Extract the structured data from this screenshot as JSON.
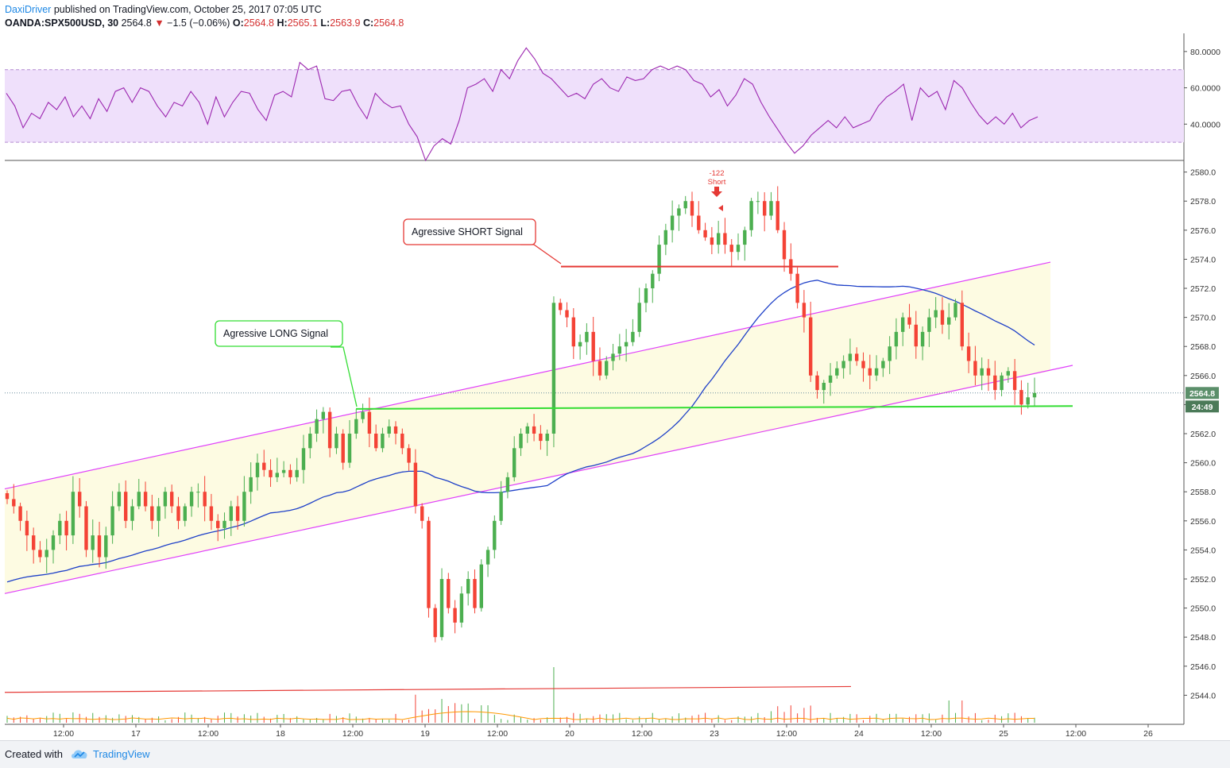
{
  "header": {
    "author": "DaxiDriver",
    "published_text": "published on TradingView.com, October 25, 2017 07:05 UTC",
    "symbol": "OANDA:SPX500USD, 30",
    "last": "2564.8",
    "change": "−1.5 (−0.06%)",
    "o_label": "O:",
    "o_value": "2564.8",
    "h_label": "H:",
    "h_value": "2565.1",
    "l_label": "L:",
    "l_value": "2563.9",
    "c_label": "C:",
    "c_value": "2564.8"
  },
  "footer": {
    "created_with": "Created with",
    "brand": "TradingView"
  },
  "colors": {
    "up": "#4caf50",
    "down": "#f44336",
    "rsi": "#9c27b0",
    "rsi_band": "#efe0fb",
    "channel_line": "#e040fb",
    "channel_fill": "#fdfbe2",
    "ma": "#1e40c8",
    "long_line": "#33dd33",
    "short_line": "#e53935",
    "volume_ma": "#ff9800"
  },
  "chart_data": [
    {
      "type": "line",
      "panel": "rsi",
      "ylim": [
        20,
        90
      ],
      "yticks": [
        "80.0000",
        "60.0000",
        "40.0000"
      ],
      "ytick_values": [
        80,
        60,
        40
      ],
      "band": [
        30,
        70
      ],
      "series": [
        {
          "values": [
            57,
            50,
            38,
            46,
            43,
            52,
            48,
            55,
            44,
            50,
            43,
            54,
            47,
            58,
            60,
            52,
            60,
            58,
            50,
            44,
            52,
            50,
            58,
            52,
            40,
            55,
            44,
            52,
            58,
            57,
            48,
            42,
            56,
            58,
            55,
            74,
            70,
            72,
            54,
            53,
            58,
            59,
            50,
            43,
            57,
            52,
            49,
            50,
            40,
            33,
            20,
            28,
            32,
            29,
            42,
            60,
            62,
            65,
            58,
            70,
            65,
            75,
            82,
            76,
            68,
            65,
            60,
            55,
            57,
            54,
            62,
            65,
            60,
            58,
            66,
            64,
            65,
            70,
            72,
            70,
            72,
            70,
            64,
            62,
            55,
            59,
            50,
            56,
            65,
            62,
            52,
            44,
            37,
            30,
            24,
            28,
            34,
            38,
            42,
            38,
            44,
            38,
            40,
            42,
            50,
            55,
            58,
            62,
            42,
            60,
            55,
            58,
            48,
            64,
            60,
            52,
            45,
            40,
            44,
            40,
            46,
            38,
            42,
            44
          ]
        }
      ]
    },
    {
      "type": "bar",
      "panel": "price",
      "ylim": [
        2542,
        2580.8
      ],
      "yticks": [
        "2580.0",
        "2578.0",
        "2576.0",
        "2574.0",
        "2572.0",
        "2570.0",
        "2568.0",
        "2566.0",
        "2564.0",
        "2562.0",
        "2560.0",
        "2558.0",
        "2556.0",
        "2554.0",
        "2552.0",
        "2550.0",
        "2548.0",
        "2546.0",
        "2544.0"
      ],
      "ytick_values": [
        2580,
        2578,
        2576,
        2574,
        2572,
        2570,
        2568,
        2566,
        2564,
        2562,
        2560,
        2558,
        2556,
        2554,
        2552,
        2550,
        2548,
        2546,
        2544
      ],
      "xticks": [
        "12:00",
        "17",
        "12:00",
        "18",
        "12:00",
        "19",
        "12:00",
        "20",
        "12:00",
        "23",
        "12:00",
        "24",
        "12:00",
        "25",
        "12:00",
        "26"
      ],
      "price_tag": "2564.8",
      "timer_tag": "24:49",
      "close_series": [
        2557.5,
        2557,
        2556,
        2555,
        2554,
        2553.5,
        2554,
        2555,
        2556,
        2555,
        2558,
        2557,
        2554,
        2555,
        2553.5,
        2555,
        2557,
        2558,
        2556,
        2557,
        2558,
        2557,
        2556,
        2557,
        2558,
        2557,
        2556,
        2557,
        2558,
        2558,
        2557,
        2556,
        2555.5,
        2556,
        2557,
        2556,
        2558,
        2559,
        2560,
        2559.5,
        2559,
        2559.3,
        2559.5,
        2559,
        2559.5,
        2561,
        2562,
        2563,
        2563.5,
        2561,
        2562,
        2560,
        2562,
        2563,
        2563.5,
        2562,
        2561,
        2562,
        2562.5,
        2562,
        2561,
        2560,
        2557,
        2556,
        2550,
        2548,
        2552,
        2550,
        2549,
        2551,
        2552,
        2550,
        2553,
        2554,
        2556,
        2558,
        2559,
        2561,
        2562,
        2562.5,
        2562,
        2561.5,
        2562,
        2571,
        2570.5,
        2570,
        2568,
        2568.3,
        2569,
        2567,
        2566,
        2567,
        2567.5,
        2568,
        2568.3,
        2569,
        2571,
        2572,
        2573,
        2575,
        2576,
        2577,
        2577.5,
        2578,
        2577,
        2576,
        2575.5,
        2575,
        2575.8,
        2575,
        2574.5,
        2575,
        2576,
        2578,
        2578,
        2577,
        2578,
        2576,
        2574,
        2573,
        2571,
        2570,
        2566,
        2565,
        2565.5,
        2566,
        2566.5,
        2567,
        2567.5,
        2567,
        2566.5,
        2566,
        2566.5,
        2567,
        2568,
        2569,
        2570,
        2569.5,
        2568,
        2569,
        2570,
        2570.5,
        2569.5,
        2570,
        2571,
        2568,
        2567,
        2566,
        2566.5,
        2566,
        2565,
        2566,
        2566.3,
        2565,
        2564,
        2564.5,
        2564.8
      ],
      "annotations": [
        "Agressive LONG Signal",
        "Agressive SHORT Signal",
        "-122",
        "Short"
      ]
    }
  ]
}
